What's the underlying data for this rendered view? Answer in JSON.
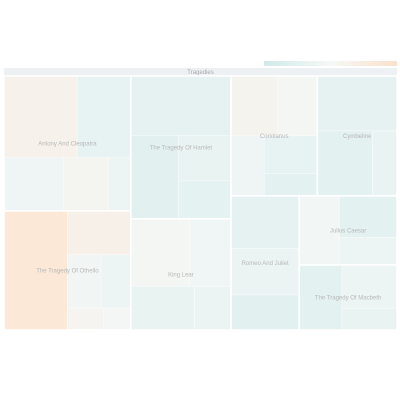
{
  "chart_data": {
    "type": "treemap",
    "root": "Tragedies",
    "colors": {
      "low": "#dcefee",
      "mid": "#f3f7f6",
      "high": "#fbe8d6",
      "header": "#eef1f3",
      "border": "#ffffff"
    },
    "color_scale": {
      "stops": [
        "#cfeae8",
        "#f6f8f7",
        "#fbe1cc"
      ]
    },
    "groups": [
      {
        "name": "The Tragedy Of Othello",
        "cells": [
          {
            "value": 38,
            "shade": 1.0
          },
          {
            "value": 14,
            "shade": 0.45
          },
          {
            "value": 9,
            "shade": -0.1
          },
          {
            "value": 3,
            "shade": 0.05
          },
          {
            "value": 8,
            "shade": -0.3
          },
          {
            "value": 4,
            "shade": 0.2
          }
        ]
      },
      {
        "name": "Antony And Cleopatra",
        "cells": [
          {
            "value": 30,
            "shade": 0.35
          },
          {
            "value": 12,
            "shade": 0.15
          },
          {
            "value": 16,
            "shade": -0.2
          },
          {
            "value": 22,
            "shade": -0.55
          },
          {
            "value": 6,
            "shade": -0.3
          }
        ]
      },
      {
        "name": "King Lear",
        "cells": [
          {
            "value": 20,
            "shade": 0.1
          },
          {
            "value": 14,
            "shade": -0.15
          },
          {
            "value": 14,
            "shade": -0.5
          },
          {
            "value": 8,
            "shade": -0.35
          }
        ]
      },
      {
        "name": "The Tragedy Of Hamlet",
        "cells": [
          {
            "value": 30,
            "shade": -0.6
          },
          {
            "value": 20,
            "shade": -0.75
          },
          {
            "value": 12,
            "shade": -0.45
          },
          {
            "value": 10,
            "shade": -0.65
          }
        ]
      },
      {
        "name": "Coriolanus",
        "cells": [
          {
            "value": 14,
            "shade": 0.25
          },
          {
            "value": 12,
            "shade": 0.1
          },
          {
            "value": 10,
            "shade": -0.2
          },
          {
            "value": 10,
            "shade": -0.55
          },
          {
            "value": 6,
            "shade": -0.7
          }
        ]
      },
      {
        "name": "Cymbeline",
        "cells": [
          {
            "value": 22,
            "shade": -0.6
          },
          {
            "value": 18,
            "shade": -0.7
          },
          {
            "value": 8,
            "shade": -0.45
          }
        ]
      },
      {
        "name": "Romeo And Juliet",
        "cells": [
          {
            "value": 16,
            "shade": -0.35
          },
          {
            "value": 18,
            "shade": -0.6
          },
          {
            "value": 12,
            "shade": -0.75
          }
        ]
      },
      {
        "name": "Julius Caesar",
        "cells": [
          {
            "value": 14,
            "shade": -0.05
          },
          {
            "value": 12,
            "shade": -0.7
          },
          {
            "value": 8,
            "shade": -0.3
          }
        ]
      },
      {
        "name": "The Tragedy Of Macbeth",
        "cells": [
          {
            "value": 12,
            "shade": -0.3
          },
          {
            "value": 14,
            "shade": -0.7
          },
          {
            "value": 6,
            "shade": -0.5
          }
        ]
      }
    ]
  }
}
